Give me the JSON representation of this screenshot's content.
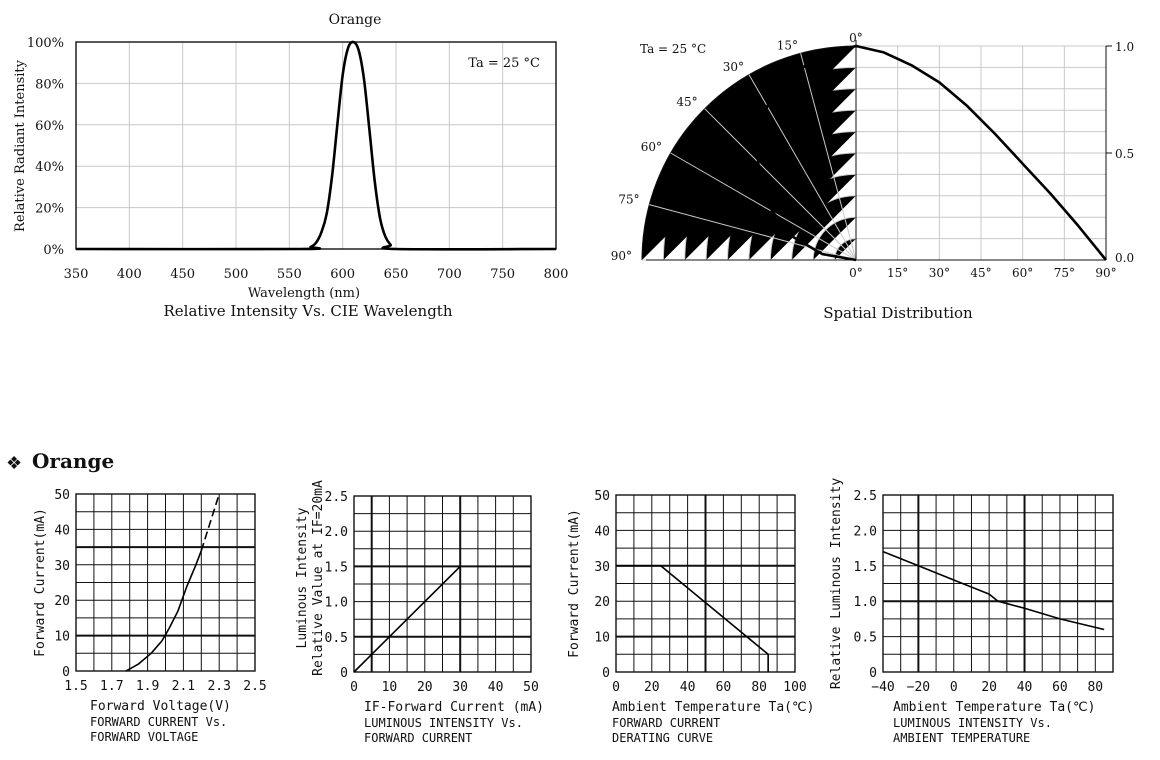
{
  "section": {
    "bullet": "❖",
    "title": "Orange"
  },
  "chart_data": [
    {
      "id": "spectrum",
      "type": "line",
      "title": "Orange",
      "subtitle": "Relative Intensity Vs. CIE Wavelength",
      "xlabel": "Wavelength (nm)",
      "ylabel": "Relative Radiant Intensity",
      "annotation": "Ta = 25 °C",
      "xlim": [
        350,
        800
      ],
      "ylim": [
        0,
        100
      ],
      "x_ticks": [
        "350",
        "400",
        "450",
        "500",
        "550",
        "600",
        "650",
        "700",
        "750",
        "800"
      ],
      "y_ticks": [
        "0%",
        "20%",
        "40%",
        "60%",
        "80%",
        "100%"
      ],
      "grid": true,
      "series": [
        {
          "x": [
            350,
            560,
            570,
            575,
            580,
            585,
            590,
            595,
            600,
            605,
            610,
            615,
            620,
            625,
            630,
            635,
            640,
            645,
            650,
            800
          ],
          "y": [
            0,
            0,
            1,
            3,
            8,
            17,
            35,
            60,
            84,
            97,
            100,
            96,
            82,
            58,
            33,
            15,
            6,
            2,
            0,
            0
          ]
        }
      ]
    },
    {
      "id": "spatial",
      "type": "polar",
      "title": "Spatial Distribution",
      "annotation": "Ta = 25 °C",
      "angle_labels": [
        "0°",
        "15°",
        "30°",
        "45°",
        "60°",
        "75°",
        "90°"
      ],
      "x_ticks": [
        "0°",
        "15°",
        "30°",
        "45°",
        "60°",
        "75°",
        "90°"
      ],
      "right_ticks": [
        "1.0",
        "0.5",
        "0.0"
      ],
      "xlim": [
        0,
        90
      ],
      "ylim": [
        0,
        1
      ],
      "grid": true,
      "series": [
        {
          "x": [
            0,
            10,
            20,
            30,
            40,
            50,
            60,
            70,
            80,
            90
          ],
          "y": [
            1.0,
            0.97,
            0.91,
            0.83,
            0.72,
            0.59,
            0.45,
            0.31,
            0.16,
            0.0
          ]
        }
      ]
    },
    {
      "id": "iv",
      "type": "line",
      "xlabel": "Forward Voltage(V)",
      "ylabel": "Forward Current(mA)",
      "caption": [
        "FORWARD CURRENT Vs.",
        "FORWARD VOLTAGE"
      ],
      "xlim": [
        1.5,
        2.5
      ],
      "ylim": [
        0,
        50
      ],
      "x_ticks": [
        "1.5",
        "1.7",
        "1.9",
        "2.1",
        "2.3",
        "2.5"
      ],
      "y_ticks": [
        "0",
        "10",
        "20",
        "30",
        "40",
        "50"
      ],
      "grid": true,
      "series": [
        {
          "x": [
            1.78,
            1.85,
            1.92,
            1.98,
            2.02,
            2.07,
            2.12,
            2.17,
            2.2
          ],
          "y": [
            0,
            2,
            5,
            8.5,
            12,
            17,
            24,
            30,
            34
          ]
        },
        {
          "x": [
            2.2,
            2.25,
            2.3
          ],
          "y": [
            34,
            42,
            50
          ],
          "style": "dashed"
        }
      ]
    },
    {
      "id": "lum-current",
      "type": "line",
      "xlabel": "IF-Forward Current (mA)",
      "ylabel": [
        "Luminous Intensity",
        "Relative Value at IF=20mA"
      ],
      "caption": [
        "LUMINOUS INTENSITY Vs.",
        "FORWARD CURRENT"
      ],
      "xlim": [
        0,
        50
      ],
      "ylim": [
        0,
        2.5
      ],
      "x_ticks": [
        "0",
        "10",
        "20",
        "30",
        "40",
        "50"
      ],
      "y_ticks": [
        "0",
        "0.5",
        "1.0",
        "1.5",
        "2.0",
        "2.5"
      ],
      "grid": true,
      "series": [
        {
          "x": [
            0,
            30
          ],
          "y": [
            0,
            1.5
          ]
        }
      ]
    },
    {
      "id": "derating",
      "type": "line",
      "xlabel": "Ambient Temperature Ta(℃)",
      "ylabel": "Forward Current(mA)",
      "caption": [
        "FORWARD CURRENT",
        "DERATING CURVE"
      ],
      "xlim": [
        0,
        100
      ],
      "ylim": [
        0,
        50
      ],
      "x_ticks": [
        "0",
        "20",
        "40",
        "60",
        "80",
        "100"
      ],
      "y_ticks": [
        "0",
        "10",
        "20",
        "30",
        "40",
        "50"
      ],
      "grid": true,
      "series": [
        {
          "x": [
            0,
            25,
            85,
            85
          ],
          "y": [
            30,
            30,
            5,
            0
          ]
        }
      ]
    },
    {
      "id": "lum-temp",
      "type": "line",
      "xlabel": "Ambient Temperature Ta(℃)",
      "ylabel": "Relative Luminous Intensity",
      "caption": [
        "LUMINOUS INTENSITY Vs.",
        "AMBIENT TEMPERATURE"
      ],
      "xlim": [
        -40,
        90
      ],
      "ylim": [
        0,
        2.5
      ],
      "x_ticks": [
        "−40",
        "−20",
        "0",
        "20",
        "40",
        "60",
        "80"
      ],
      "y_ticks": [
        "0",
        "0.5",
        "1.0",
        "1.5",
        "2.0",
        "2.5"
      ],
      "grid": true,
      "series": [
        {
          "x": [
            -40,
            -20,
            0,
            20,
            25,
            40,
            60,
            85
          ],
          "y": [
            1.7,
            1.5,
            1.3,
            1.1,
            1.0,
            0.9,
            0.75,
            0.6
          ]
        }
      ]
    }
  ]
}
